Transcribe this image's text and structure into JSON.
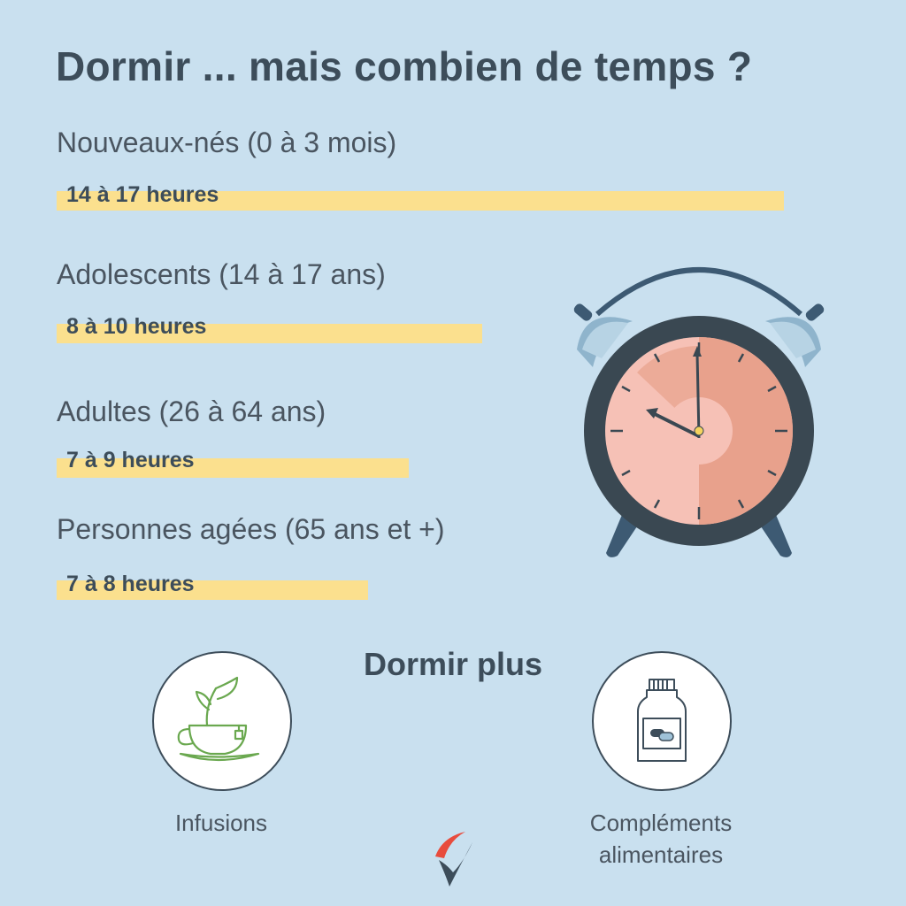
{
  "title": "Dormir ... mais combien de temps ?",
  "groups": [
    {
      "label": "Nouveaux-nés (0 à 3 mois)",
      "hours": "14 à 17 heures"
    },
    {
      "label": "Adolescents (14 à 17 ans)",
      "hours": "8 à 10 heures"
    },
    {
      "label": "Adultes (26 à 64 ans)",
      "hours": "7 à 9 heures"
    },
    {
      "label": "Personnes agées (65 ans et +)",
      "hours": "7 à 8 heures"
    }
  ],
  "subtitle": "Dormir plus",
  "options": [
    {
      "label": "Infusions",
      "icon": "tea-cup-icon"
    },
    {
      "label_line1": "Compléments",
      "label_line2": "alimentaires",
      "icon": "supplement-bottle-icon"
    }
  ],
  "colors": {
    "background": "#c9e0ef",
    "bar": "#fbe08e",
    "text": "#3d4d5a",
    "clock_face": "#f6c1b6",
    "clock_sector": "#e8a18c",
    "tea_green": "#6aa84f",
    "logo_red": "#e84c3d"
  }
}
